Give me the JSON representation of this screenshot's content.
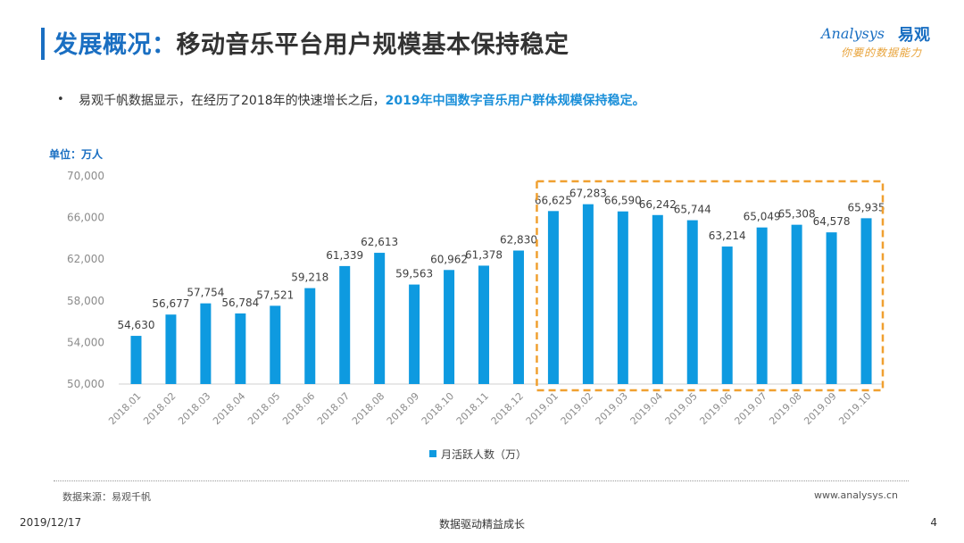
{
  "header": {
    "title_part1": "发展概况：",
    "title_part2": "移动音乐平台用户规模基本保持稳定",
    "logo_en": "Analysys",
    "logo_cn": "易观",
    "logo_tagline": "你要的数据能力"
  },
  "bullet": {
    "marker": "•",
    "text_plain": "易观千帆数据显示，在经历了2018年的快速增长之后，",
    "text_highlight": "2019年中国数字音乐用户群体规模保持稳定。"
  },
  "chart_data": {
    "type": "bar",
    "unit_label": "单位：万人",
    "categories": [
      "2018.01",
      "2018.02",
      "2018.03",
      "2018.04",
      "2018.05",
      "2018.06",
      "2018.07",
      "2018.08",
      "2018.09",
      "2018.10",
      "2018.11",
      "2018.12",
      "2019.01",
      "2019.02",
      "2019.03",
      "2019.04",
      "2019.05",
      "2019.06",
      "2019.07",
      "2019.08",
      "2019.09",
      "2019.10"
    ],
    "value_labels": [
      "54,630",
      "56,677",
      "57,754",
      "56,784",
      "57,521",
      "59,218",
      "61,339",
      "62,613",
      "59,563",
      "60,962",
      "61,378",
      "62,830",
      "66,625",
      "67,283",
      "66,590",
      "66,242",
      "65,744",
      "63,214",
      "65,049",
      "65,308",
      "64,578",
      "65,935"
    ],
    "series": [
      {
        "name": "月活跃人数（万）",
        "values": [
          54630,
          56677,
          57754,
          56784,
          57521,
          59218,
          61339,
          62613,
          59563,
          60962,
          61378,
          62830,
          66625,
          67283,
          66590,
          66242,
          65744,
          63214,
          65049,
          65308,
          64578,
          65935
        ]
      }
    ],
    "ylim": [
      50000,
      70000
    ],
    "yticks": [
      "50,000",
      "54,000",
      "58,000",
      "62,000",
      "66,000",
      "70,000"
    ],
    "ytick_values": [
      50000,
      54000,
      58000,
      62000,
      66000,
      70000
    ],
    "grid": false,
    "legend_position": "bottom",
    "highlight_range": [
      "2019.01",
      "2019.10"
    ],
    "colors": {
      "bar": "#0e9ae0",
      "highlight_box": "#f0a030",
      "axis_text": "#8c8c8c",
      "label_text": "#404040"
    }
  },
  "footer": {
    "source": "数据来源：易观千帆",
    "site": "www.analysys.cn",
    "date": "2019/12/17",
    "slogan": "数据驱动精益成长",
    "page_number": "4"
  }
}
